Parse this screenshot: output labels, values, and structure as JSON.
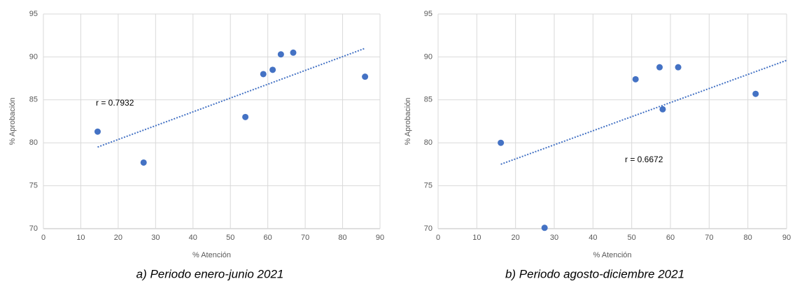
{
  "chart_data": [
    {
      "type": "scatter",
      "caption": "a) Periodo enero-junio 2021",
      "x_label": "% Atención",
      "y_label": "% Aprobación",
      "annotation": "r = 0.7932",
      "color": "#4472c4",
      "grid": true,
      "x": [
        14.5,
        26.8,
        54,
        58.8,
        61.3,
        63.5,
        66.8,
        86
      ],
      "values": [
        81.3,
        77.7,
        83,
        88,
        88.5,
        90.3,
        90.5,
        87.7
      ],
      "trendline": {
        "x": [
          14.5,
          86
        ],
        "values": [
          79.5,
          91
        ]
      },
      "xlim": [
        0,
        90
      ],
      "xticks": [
        0,
        10,
        20,
        30,
        40,
        50,
        60,
        70,
        80,
        90
      ],
      "ylim": [
        70,
        95
      ],
      "yticks": [
        70,
        75,
        80,
        85,
        90,
        95
      ]
    },
    {
      "type": "scatter",
      "caption": "b) Periodo agosto-diciembre 2021",
      "x_label": "% Atención",
      "y_label": "% Aprobación",
      "annotation": "r = 0.6672",
      "color": "#4472c4",
      "grid": true,
      "x": [
        16.2,
        27.5,
        51,
        57.2,
        58,
        62,
        82
      ],
      "values": [
        80,
        70.1,
        87.4,
        88.8,
        83.9,
        88.8,
        85.7
      ],
      "trendline": {
        "x": [
          16.2,
          90
        ],
        "values": [
          77.5,
          89.6
        ]
      },
      "xlim": [
        0,
        90
      ],
      "xticks": [
        0,
        10,
        20,
        30,
        40,
        50,
        60,
        70,
        80,
        90
      ],
      "ylim": [
        70,
        95
      ],
      "yticks": [
        70,
        75,
        80,
        85,
        90,
        95
      ]
    }
  ]
}
